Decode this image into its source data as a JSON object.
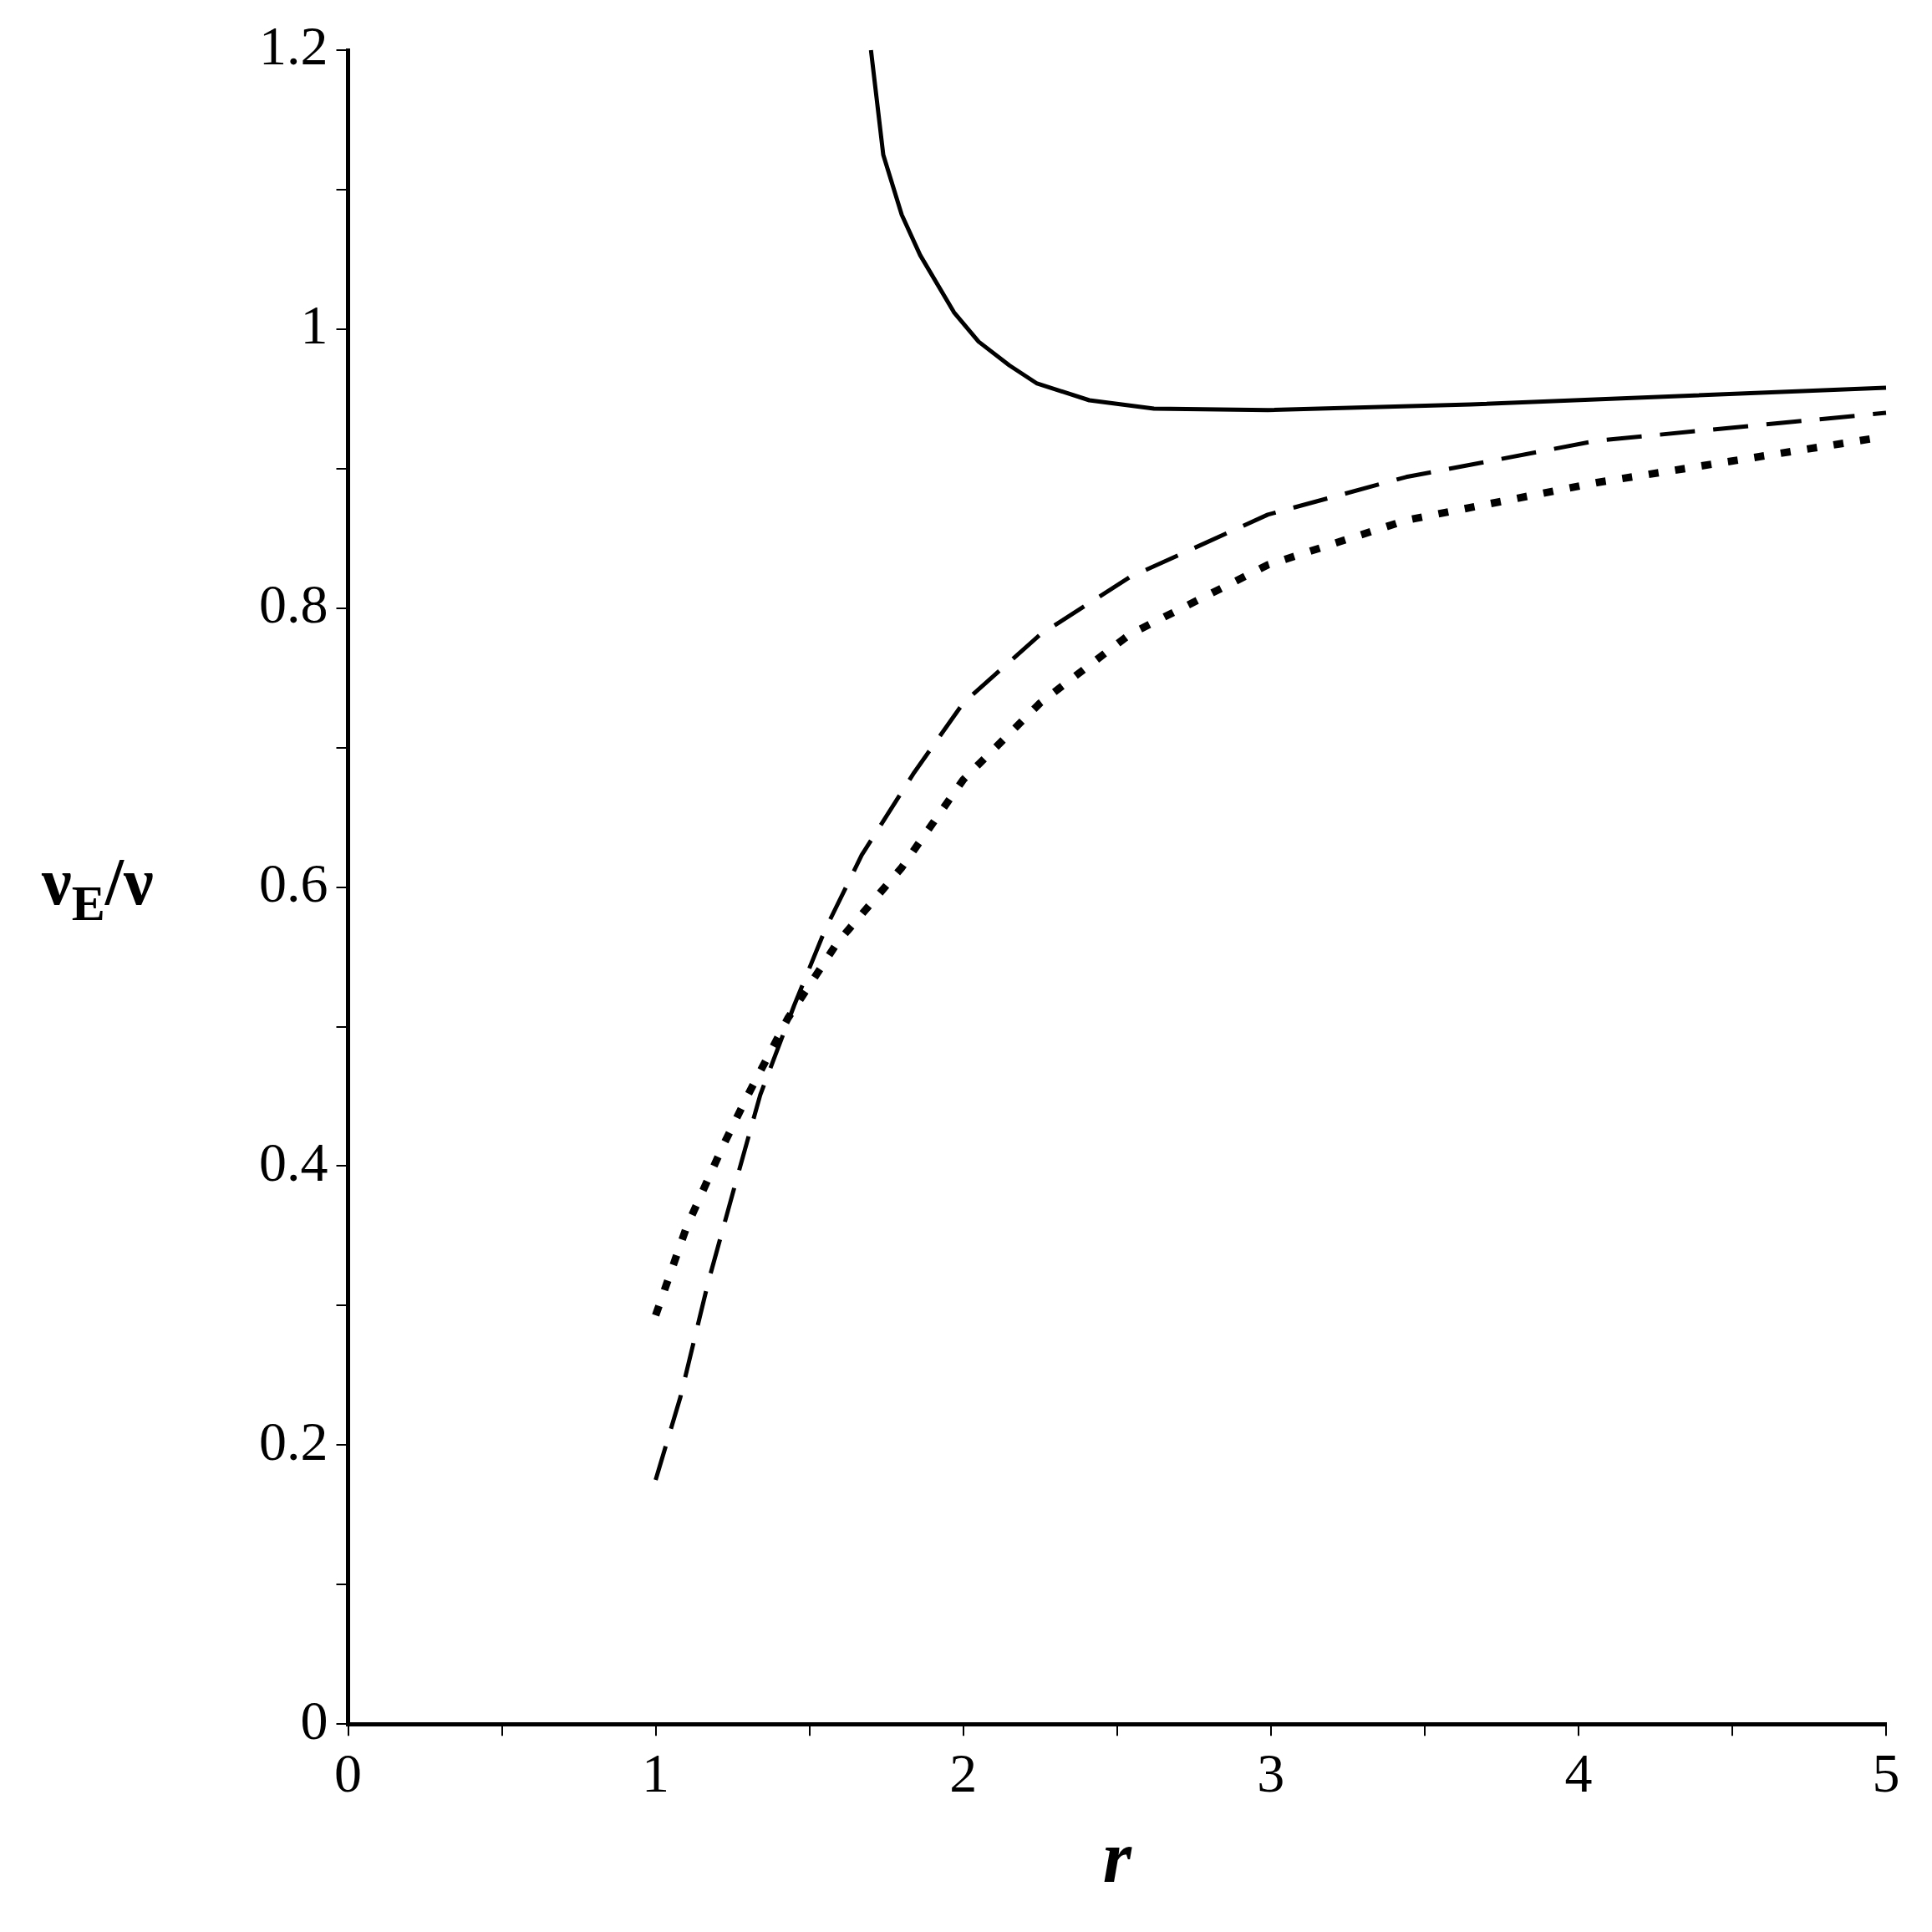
{
  "chart_data": {
    "type": "line",
    "xlabel": "r",
    "ylabel": "ν$_{E}$/ν",
    "xlim": [
      0,
      5
    ],
    "ylim": [
      0,
      1.2
    ],
    "xticks": [
      0,
      {
        "value": 0.5,
        "label": null
      },
      1,
      {
        "value": 1.5,
        "label": null
      },
      2,
      {
        "value": 2.5,
        "label": null
      },
      3,
      {
        "value": 3.5,
        "label": null
      },
      4,
      {
        "value": 4.5,
        "label": null
      },
      5
    ],
    "yticks": [
      0,
      {
        "value": 0.1,
        "label": null
      },
      0.2,
      {
        "value": 0.3,
        "label": null
      },
      0.4,
      {
        "value": 0.5,
        "label": null
      },
      0.6,
      {
        "value": 0.7,
        "label": null
      },
      0.8,
      {
        "value": 0.9,
        "label": null
      },
      1,
      {
        "value": 1.1,
        "label": null
      },
      1.2
    ],
    "grid": false,
    "legend": false,
    "marker": "none",
    "series": [
      {
        "color": "#000000",
        "line_style": "solid",
        "x": [
          1.7,
          1.74,
          1.8,
          1.86,
          1.97,
          2.05,
          2.15,
          2.24,
          2.41,
          2.62,
          2.99,
          3.65,
          5
        ],
        "values": [
          1.2,
          1.125,
          1.082,
          1.053,
          1.012,
          0.991,
          0.974,
          0.961,
          0.949,
          0.943,
          0.942,
          0.946,
          0.958
        ]
      },
      {
        "color": "#000000",
        "line_style": "dashed",
        "x": [
          1,
          1.08,
          1.17,
          1.26,
          1.34,
          1.45,
          1.55,
          1.67,
          1.84,
          2,
          2.25,
          2.54,
          2.99,
          3.44,
          4.06,
          5
        ],
        "values": [
          0.175,
          0.234,
          0.316,
          0.388,
          0.451,
          0.515,
          0.569,
          0.623,
          0.682,
          0.732,
          0.781,
          0.822,
          0.867,
          0.894,
          0.92,
          0.94
        ]
      },
      {
        "color": "#000000",
        "line_style": "dotted",
        "x": [
          1,
          1.1,
          1.22,
          1.3,
          1.43,
          1.59,
          1.8,
          2,
          2.25,
          2.54,
          2.99,
          3.44,
          4.06,
          4.97
        ],
        "values": [
          0.293,
          0.356,
          0.415,
          0.451,
          0.506,
          0.56,
          0.614,
          0.677,
          0.732,
          0.781,
          0.831,
          0.863,
          0.89,
          0.922
        ]
      }
    ]
  }
}
